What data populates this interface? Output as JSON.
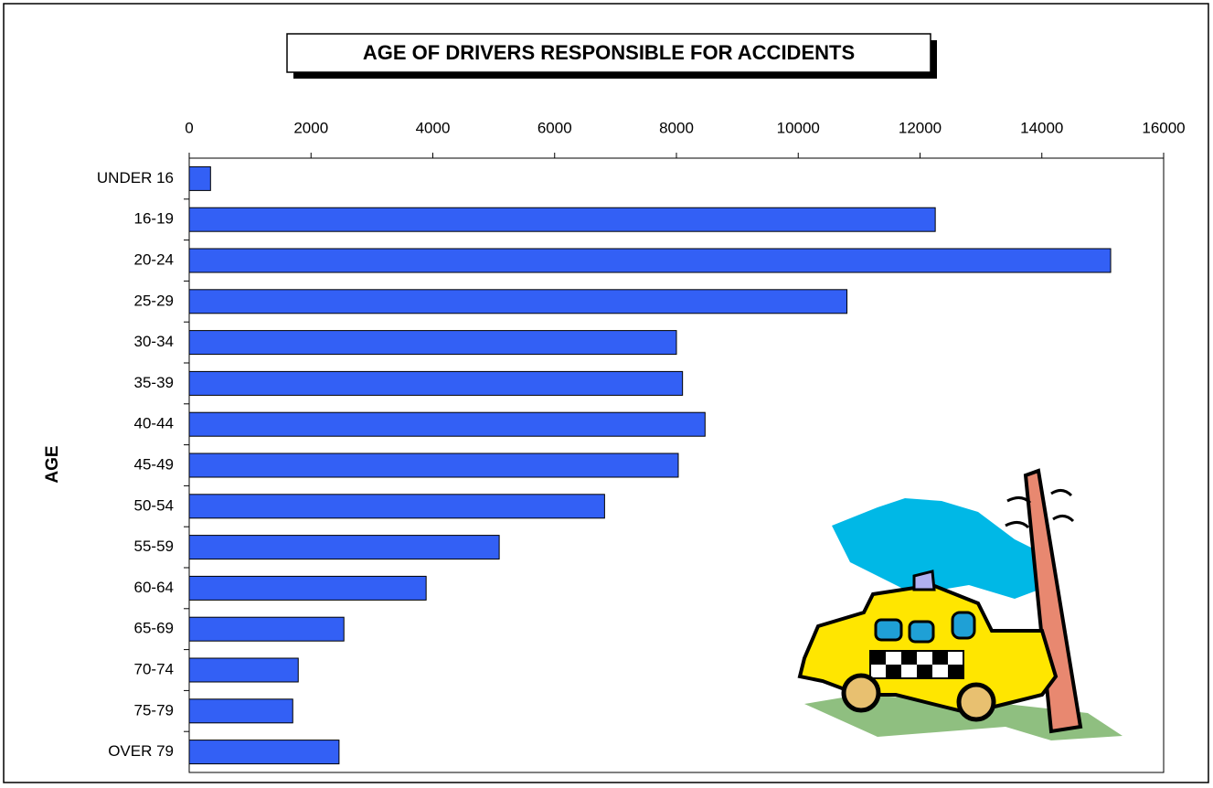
{
  "chart_data": {
    "type": "hbar",
    "title": "AGE OF DRIVERS RESPONSIBLE FOR ACCIDENTS",
    "y_label": "AGE",
    "categories": [
      "UNDER 16",
      "16-19",
      "20-24",
      "25-29",
      "30-34",
      "35-39",
      "40-44",
      "45-49",
      "50-54",
      "55-59",
      "60-64",
      "65-69",
      "70-74",
      "75-79",
      "OVER 79"
    ],
    "values": [
      350,
      12250,
      15130,
      10800,
      8000,
      8100,
      8470,
      8030,
      6820,
      5090,
      3890,
      2540,
      1790,
      1700,
      2460
    ],
    "color": "#3360f5",
    "xlim": [
      0,
      16000
    ],
    "xticks": [
      0,
      2000,
      4000,
      6000,
      8000,
      10000,
      12000,
      14000,
      16000
    ],
    "grid": false
  }
}
